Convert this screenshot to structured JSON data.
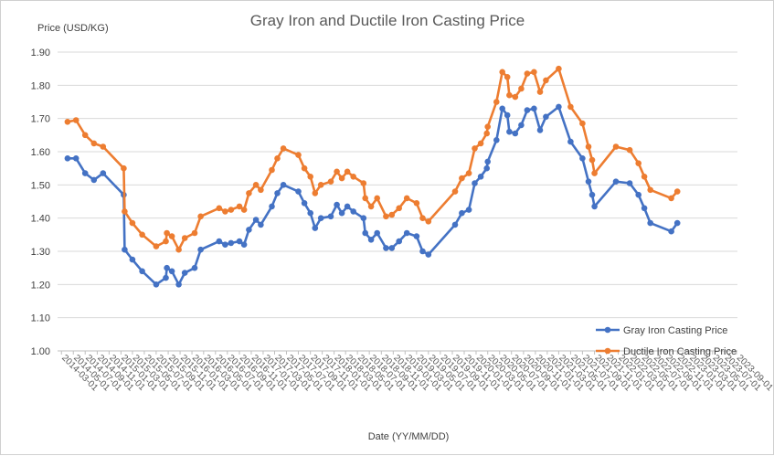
{
  "chart_data": {
    "type": "line",
    "title": "Gray Iron and Ductile Iron Casting Price",
    "ylabel": "Price (USD/KG)",
    "xlabel": "Date (YY/MM/DD)",
    "ylim": [
      1.0,
      1.9
    ],
    "ytick_step": 0.1,
    "grid": "horizontal",
    "legend_position": "bottom-right",
    "x_tick_labels": [
      "2014-03-01",
      "2014-05-01",
      "2014-07-01",
      "2014-09-01",
      "2014-11-01",
      "2015-01-01",
      "2015-03-01",
      "2015-05-01",
      "2015-07-01",
      "2015-09-01",
      "2015-11-01",
      "2016-01-01",
      "2016-03-01",
      "2016-05-01",
      "2016-07-01",
      "2016-09-01",
      "2016-11-01",
      "2017-01-01",
      "2017-03-01",
      "2017-05-01",
      "2017-07-01",
      "2017-09-01",
      "2017-11-01",
      "2018-01-01",
      "2018-03-01",
      "2018-05-01",
      "2018-07-01",
      "2018-09-01",
      "2018-11-01",
      "2019-01-01",
      "2019-03-01",
      "2019-05-01",
      "2019-07-01",
      "2019-09-01",
      "2019-11-01",
      "2020-01-01",
      "2020-03-01",
      "2020-05-01",
      "2020-07-01",
      "2020-09-01",
      "2020-11-01",
      "2021-01-01",
      "2021-03-01",
      "2021-05-01",
      "2021-07-01",
      "2021-09-01",
      "2021-11-01",
      "2022-01-01",
      "2022-03-01",
      "2022-05-01",
      "2022-07-01",
      "2022-09-01",
      "2022-11-01",
      "2023-01-01",
      "2023-03-01",
      "2023-05-01",
      "2023-07-01",
      "2023-09-01"
    ],
    "series": [
      {
        "name": "Gray Iron Casting Price",
        "color": "#4472C4",
        "points": [
          [
            "2014-04-01",
            1.58
          ],
          [
            "2014-05-15",
            1.58
          ],
          [
            "2014-07-01",
            1.535
          ],
          [
            "2014-08-15",
            1.515
          ],
          [
            "2014-10-01",
            1.535
          ],
          [
            "2015-01-15",
            1.47
          ],
          [
            "2015-01-20",
            1.305
          ],
          [
            "2015-03-01",
            1.275
          ],
          [
            "2015-04-20",
            1.24
          ],
          [
            "2015-07-01",
            1.2
          ],
          [
            "2015-08-20",
            1.22
          ],
          [
            "2015-08-25",
            1.25
          ],
          [
            "2015-09-20",
            1.24
          ],
          [
            "2015-10-25",
            1.2
          ],
          [
            "2015-11-25",
            1.235
          ],
          [
            "2016-01-15",
            1.25
          ],
          [
            "2016-02-15",
            1.305
          ],
          [
            "2016-05-20",
            1.33
          ],
          [
            "2016-06-20",
            1.32
          ],
          [
            "2016-07-20",
            1.325
          ],
          [
            "2016-09-01",
            1.33
          ],
          [
            "2016-09-25",
            1.32
          ],
          [
            "2016-10-20",
            1.365
          ],
          [
            "2016-11-25",
            1.395
          ],
          [
            "2016-12-20",
            1.38
          ],
          [
            "2017-02-15",
            1.435
          ],
          [
            "2017-03-15",
            1.475
          ],
          [
            "2017-04-15",
            1.5
          ],
          [
            "2017-07-01",
            1.48
          ],
          [
            "2017-08-01",
            1.445
          ],
          [
            "2017-09-01",
            1.415
          ],
          [
            "2017-09-25",
            1.37
          ],
          [
            "2017-10-25",
            1.4
          ],
          [
            "2017-12-15",
            1.405
          ],
          [
            "2018-01-15",
            1.44
          ],
          [
            "2018-02-10",
            1.415
          ],
          [
            "2018-03-10",
            1.435
          ],
          [
            "2018-04-10",
            1.42
          ],
          [
            "2018-06-01",
            1.4
          ],
          [
            "2018-06-10",
            1.355
          ],
          [
            "2018-07-10",
            1.335
          ],
          [
            "2018-08-10",
            1.355
          ],
          [
            "2018-09-25",
            1.31
          ],
          [
            "2018-10-25",
            1.31
          ],
          [
            "2018-12-01",
            1.33
          ],
          [
            "2019-01-10",
            1.355
          ],
          [
            "2019-03-01",
            1.345
          ],
          [
            "2019-04-01",
            1.3
          ],
          [
            "2019-05-01",
            1.29
          ],
          [
            "2019-09-15",
            1.38
          ],
          [
            "2019-10-20",
            1.415
          ],
          [
            "2019-11-25",
            1.425
          ],
          [
            "2019-12-25",
            1.505
          ],
          [
            "2020-01-25",
            1.525
          ],
          [
            "2020-02-25",
            1.55
          ],
          [
            "2020-03-01",
            1.57
          ],
          [
            "2020-04-15",
            1.635
          ],
          [
            "2020-05-15",
            1.73
          ],
          [
            "2020-06-10",
            1.71
          ],
          [
            "2020-06-20",
            1.66
          ],
          [
            "2020-07-20",
            1.655
          ],
          [
            "2020-08-20",
            1.68
          ],
          [
            "2020-09-20",
            1.725
          ],
          [
            "2020-10-25",
            1.73
          ],
          [
            "2020-11-25",
            1.665
          ],
          [
            "2020-12-25",
            1.705
          ],
          [
            "2021-03-01",
            1.735
          ],
          [
            "2021-05-01",
            1.63
          ],
          [
            "2021-07-01",
            1.58
          ],
          [
            "2021-08-01",
            1.51
          ],
          [
            "2021-08-20",
            1.47
          ],
          [
            "2021-09-01",
            1.435
          ],
          [
            "2021-12-20",
            1.51
          ],
          [
            "2022-03-01",
            1.505
          ],
          [
            "2022-04-15",
            1.47
          ],
          [
            "2022-05-15",
            1.43
          ],
          [
            "2022-06-15",
            1.385
          ],
          [
            "2022-10-01",
            1.36
          ],
          [
            "2022-11-01",
            1.385
          ]
        ]
      },
      {
        "name": "Ductile Iron Casting Price",
        "color": "#ED7D31",
        "points": [
          [
            "2014-04-01",
            1.69
          ],
          [
            "2014-05-15",
            1.695
          ],
          [
            "2014-07-01",
            1.65
          ],
          [
            "2014-08-15",
            1.625
          ],
          [
            "2014-10-01",
            1.615
          ],
          [
            "2015-01-15",
            1.55
          ],
          [
            "2015-01-20",
            1.42
          ],
          [
            "2015-03-01",
            1.385
          ],
          [
            "2015-04-20",
            1.35
          ],
          [
            "2015-07-01",
            1.315
          ],
          [
            "2015-08-20",
            1.33
          ],
          [
            "2015-08-25",
            1.355
          ],
          [
            "2015-09-20",
            1.345
          ],
          [
            "2015-10-25",
            1.305
          ],
          [
            "2015-11-25",
            1.34
          ],
          [
            "2016-01-15",
            1.355
          ],
          [
            "2016-02-15",
            1.405
          ],
          [
            "2016-05-20",
            1.43
          ],
          [
            "2016-06-20",
            1.42
          ],
          [
            "2016-07-20",
            1.425
          ],
          [
            "2016-09-01",
            1.435
          ],
          [
            "2016-09-25",
            1.425
          ],
          [
            "2016-10-20",
            1.475
          ],
          [
            "2016-11-25",
            1.5
          ],
          [
            "2016-12-20",
            1.485
          ],
          [
            "2017-02-15",
            1.545
          ],
          [
            "2017-03-15",
            1.58
          ],
          [
            "2017-04-15",
            1.61
          ],
          [
            "2017-07-01",
            1.59
          ],
          [
            "2017-08-01",
            1.55
          ],
          [
            "2017-09-01",
            1.525
          ],
          [
            "2017-09-25",
            1.475
          ],
          [
            "2017-10-25",
            1.5
          ],
          [
            "2017-12-15",
            1.51
          ],
          [
            "2018-01-15",
            1.54
          ],
          [
            "2018-02-10",
            1.52
          ],
          [
            "2018-03-10",
            1.54
          ],
          [
            "2018-04-10",
            1.525
          ],
          [
            "2018-06-01",
            1.505
          ],
          [
            "2018-06-10",
            1.46
          ],
          [
            "2018-07-10",
            1.435
          ],
          [
            "2018-08-10",
            1.46
          ],
          [
            "2018-09-25",
            1.405
          ],
          [
            "2018-10-25",
            1.41
          ],
          [
            "2018-12-01",
            1.43
          ],
          [
            "2019-01-10",
            1.46
          ],
          [
            "2019-03-01",
            1.445
          ],
          [
            "2019-04-01",
            1.4
          ],
          [
            "2019-05-01",
            1.39
          ],
          [
            "2019-09-15",
            1.48
          ],
          [
            "2019-10-20",
            1.52
          ],
          [
            "2019-11-25",
            1.535
          ],
          [
            "2019-12-25",
            1.61
          ],
          [
            "2020-01-25",
            1.625
          ],
          [
            "2020-02-25",
            1.655
          ],
          [
            "2020-03-01",
            1.675
          ],
          [
            "2020-04-15",
            1.75
          ],
          [
            "2020-05-15",
            1.84
          ],
          [
            "2020-06-10",
            1.825
          ],
          [
            "2020-06-20",
            1.77
          ],
          [
            "2020-07-20",
            1.765
          ],
          [
            "2020-08-20",
            1.79
          ],
          [
            "2020-09-20",
            1.835
          ],
          [
            "2020-10-25",
            1.84
          ],
          [
            "2020-11-25",
            1.78
          ],
          [
            "2020-12-25",
            1.815
          ],
          [
            "2021-03-01",
            1.85
          ],
          [
            "2021-05-01",
            1.735
          ],
          [
            "2021-07-01",
            1.685
          ],
          [
            "2021-08-01",
            1.615
          ],
          [
            "2021-08-20",
            1.575
          ],
          [
            "2021-09-01",
            1.535
          ],
          [
            "2021-12-20",
            1.615
          ],
          [
            "2022-03-01",
            1.605
          ],
          [
            "2022-04-15",
            1.565
          ],
          [
            "2022-05-15",
            1.525
          ],
          [
            "2022-06-15",
            1.485
          ],
          [
            "2022-10-01",
            1.46
          ],
          [
            "2022-11-01",
            1.48
          ]
        ]
      }
    ]
  }
}
